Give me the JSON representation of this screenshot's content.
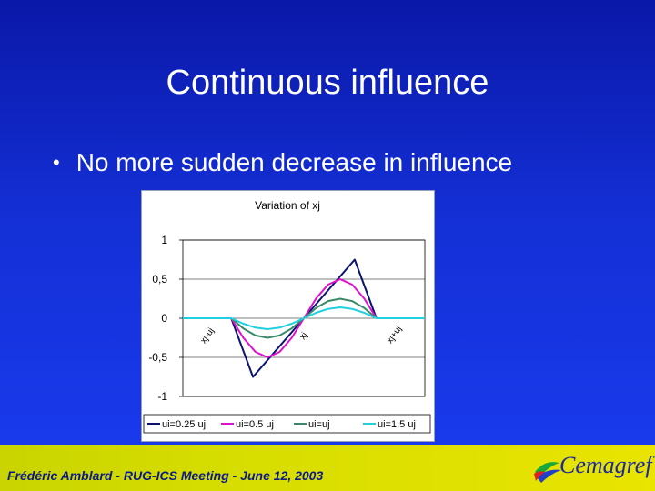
{
  "slide": {
    "title": "Continuous influence",
    "bullet": "No more sudden decrease in influence",
    "bullet_glyph": "•"
  },
  "chart_data": {
    "type": "line",
    "title": "Variation of xj",
    "ylim": [
      -1,
      1
    ],
    "ytick_labels": [
      "1",
      "0,5",
      "0",
      "-0,5",
      "-1"
    ],
    "yticks": [
      1,
      0.5,
      0,
      -0.5,
      -1
    ],
    "xlim": [
      0,
      1
    ],
    "annotations": [
      {
        "text": "xj-uj",
        "x": 0.09,
        "y": -0.33
      },
      {
        "text": "xj",
        "x": 0.5,
        "y": -0.28
      },
      {
        "text": "xj+uj",
        "x": 0.86,
        "y": -0.33
      }
    ],
    "series": [
      {
        "name": "ui=0.25 uj",
        "color": "#0a1470",
        "x": [
          0.2,
          0.29,
          0.5,
          0.71,
          0.8
        ],
        "y": [
          0,
          -0.75,
          0,
          0.75,
          0
        ]
      },
      {
        "name": "ui=0.5 uj",
        "color": "#e010d0",
        "x": [
          0.2,
          0.25,
          0.3,
          0.35,
          0.4,
          0.45,
          0.5,
          0.55,
          0.6,
          0.65,
          0.7,
          0.75,
          0.8
        ],
        "y": [
          0,
          -0.25,
          -0.43,
          -0.5,
          -0.43,
          -0.25,
          0,
          0.25,
          0.43,
          0.5,
          0.43,
          0.25,
          0
        ]
      },
      {
        "name": "ui=uj",
        "color": "#3a8a6a",
        "x": [
          0.2,
          0.25,
          0.3,
          0.35,
          0.4,
          0.45,
          0.5,
          0.55,
          0.6,
          0.65,
          0.7,
          0.75,
          0.8
        ],
        "y": [
          0,
          -0.13,
          -0.22,
          -0.25,
          -0.22,
          -0.13,
          0,
          0.13,
          0.22,
          0.25,
          0.22,
          0.13,
          0
        ]
      },
      {
        "name": "ui=1.5 uj",
        "color": "#20d0e0",
        "x": [
          0,
          0.2,
          0.25,
          0.3,
          0.35,
          0.4,
          0.45,
          0.5,
          0.55,
          0.6,
          0.65,
          0.7,
          0.75,
          0.8,
          1
        ],
        "y": [
          0,
          0,
          -0.07,
          -0.12,
          -0.14,
          -0.12,
          -0.07,
          0,
          0.07,
          0.12,
          0.14,
          0.12,
          0.07,
          0,
          0
        ]
      }
    ],
    "legend_position": "bottom"
  },
  "footer": {
    "text": "Frédéric Amblard - RUG-ICS Meeting - June 12, 2003",
    "logo_text": "Cemagref",
    "logo_icon": "cemagref-logo-icon"
  }
}
